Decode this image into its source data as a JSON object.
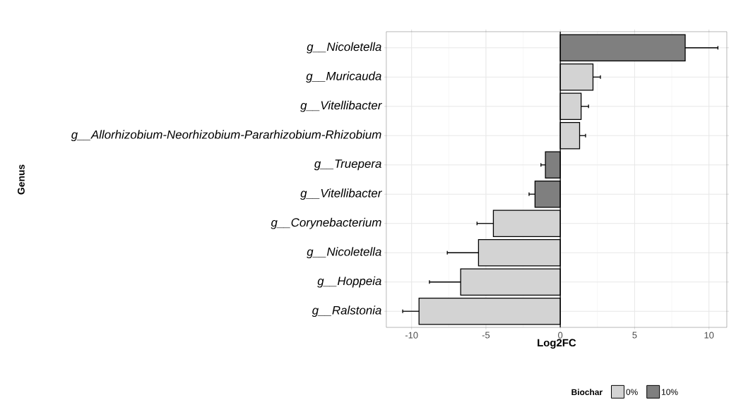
{
  "chart_data": {
    "type": "bar",
    "orientation": "horizontal",
    "xlabel": "Log2FC",
    "ylabel": "Genus",
    "legend_title": "Biochar",
    "categories": [
      "g__Nicoletella",
      "g__Muricauda",
      "g__Vitellibacter",
      "g__Allorhizobium-Neorhizobium-Pararhizobium-Rhizobium",
      "g__Truepera",
      "g__Vitellibacter",
      "g__Corynebacterium",
      "g__Nicoletella",
      "g__Hoppeia",
      "g__Ralstonia"
    ],
    "series": [
      {
        "name": "0%",
        "color": "#d3d3d3",
        "values": [
          null,
          2.2,
          1.4,
          1.3,
          null,
          null,
          -4.5,
          -5.5,
          -6.7,
          -9.5
        ],
        "errors": [
          null,
          [
            2.2,
            2.7
          ],
          [
            1.4,
            1.9
          ],
          [
            1.3,
            1.7
          ],
          null,
          null,
          [
            -5.6,
            -4.5
          ],
          [
            -7.6,
            -5.5
          ],
          [
            -8.8,
            -6.7
          ],
          [
            -10.6,
            -9.5
          ]
        ]
      },
      {
        "name": "10%",
        "color": "#7f7f7f",
        "values": [
          8.4,
          null,
          null,
          null,
          -1.0,
          -1.7,
          null,
          null,
          null,
          null
        ],
        "errors": [
          [
            8.4,
            10.6
          ],
          null,
          null,
          null,
          [
            -1.3,
            -1.0
          ],
          [
            -2.1,
            -1.7
          ],
          null,
          null,
          null,
          null
        ]
      }
    ],
    "xlim": [
      -11.7,
      11.2
    ],
    "xticks": [
      -10,
      -5,
      0,
      5,
      10
    ],
    "ref_lines": [
      {
        "axis": "x",
        "value": 0,
        "color": "#000000"
      }
    ],
    "grid": true,
    "legend": "bottom"
  }
}
